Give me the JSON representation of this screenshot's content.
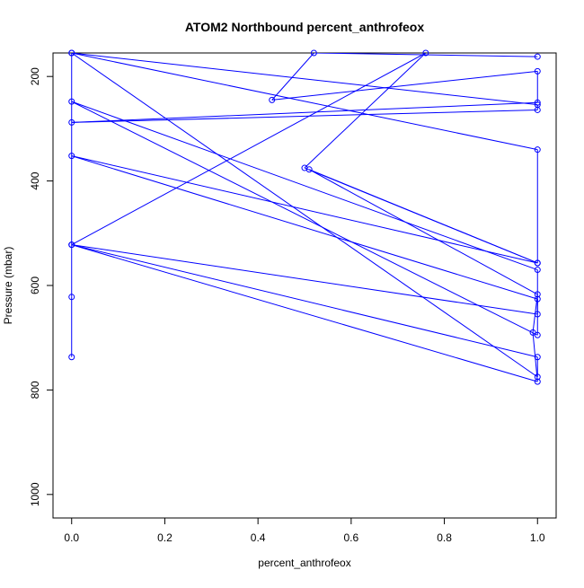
{
  "chart_data": {
    "type": "line",
    "title": "ATOM2 Northbound percent_anthrofeox",
    "xlabel": "percent_anthrofeox",
    "ylabel": "Pressure (mbar)",
    "xlim": [
      -0.04,
      1.04
    ],
    "ylim": [
      1045,
      155
    ],
    "y_reversed": true,
    "grid": false,
    "x_ticks": [
      {
        "value": 0.0,
        "label": "0.0"
      },
      {
        "value": 0.2,
        "label": "0.2"
      },
      {
        "value": 0.4,
        "label": "0.4"
      },
      {
        "value": 0.6,
        "label": "0.6"
      },
      {
        "value": 0.8,
        "label": "0.8"
      },
      {
        "value": 1.0,
        "label": "1.0"
      }
    ],
    "y_ticks": [
      {
        "value": 200,
        "label": "200"
      },
      {
        "value": 400,
        "label": "400"
      },
      {
        "value": 600,
        "label": "600"
      },
      {
        "value": 800,
        "label": "800"
      },
      {
        "value": 1000,
        "label": "1000"
      }
    ],
    "series_color": "#0000ff",
    "series": [
      {
        "x": [
          0.0,
          0.0,
          0.0,
          1.0,
          1.0,
          0.0,
          1.0,
          0.99,
          1.0,
          0.51,
          1.0,
          0.0,
          1.0,
          1.0,
          0.0,
          1.0,
          1.0,
          0.0,
          0.76,
          0.5,
          1.0,
          1.0,
          0.0,
          1.0,
          1.0,
          0.0,
          1.0,
          1.0,
          0.43,
          0.52,
          1.0
        ],
        "y": [
          737,
          622,
          155,
          775,
          737,
          522,
          784,
          690,
          617,
          378,
          557,
          352,
          626,
          695,
          248,
          570,
          655,
          522,
          155,
          375,
          557,
          340,
          155,
          254,
          264,
          288,
          250,
          190,
          245,
          155,
          162
        ],
        "markers": true
      }
    ]
  }
}
